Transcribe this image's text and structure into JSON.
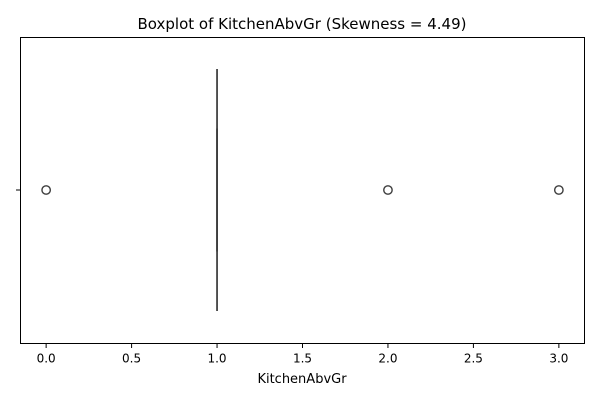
{
  "chart_data": {
    "type": "box",
    "orientation": "horizontal",
    "title": "Boxplot of KitchenAbvGr (Skewness = 4.49)",
    "xlabel": "KitchenAbvGr",
    "ylabel": "",
    "xlim": [
      -0.15,
      3.15
    ],
    "xticks": [
      0.0,
      0.5,
      1.0,
      1.5,
      2.0,
      2.5,
      3.0
    ],
    "xtick_labels": [
      "0.0",
      "0.5",
      "1.0",
      "1.5",
      "2.0",
      "2.5",
      "3.0"
    ],
    "box": {
      "q1": 1.0,
      "median": 1.0,
      "q3": 1.0,
      "whisker_low": 1.0,
      "whisker_high": 1.0
    },
    "outliers": [
      0.0,
      2.0,
      3.0
    ],
    "grid": false,
    "colors": {
      "box": "#3d3d3d",
      "frame": "#000000"
    }
  }
}
